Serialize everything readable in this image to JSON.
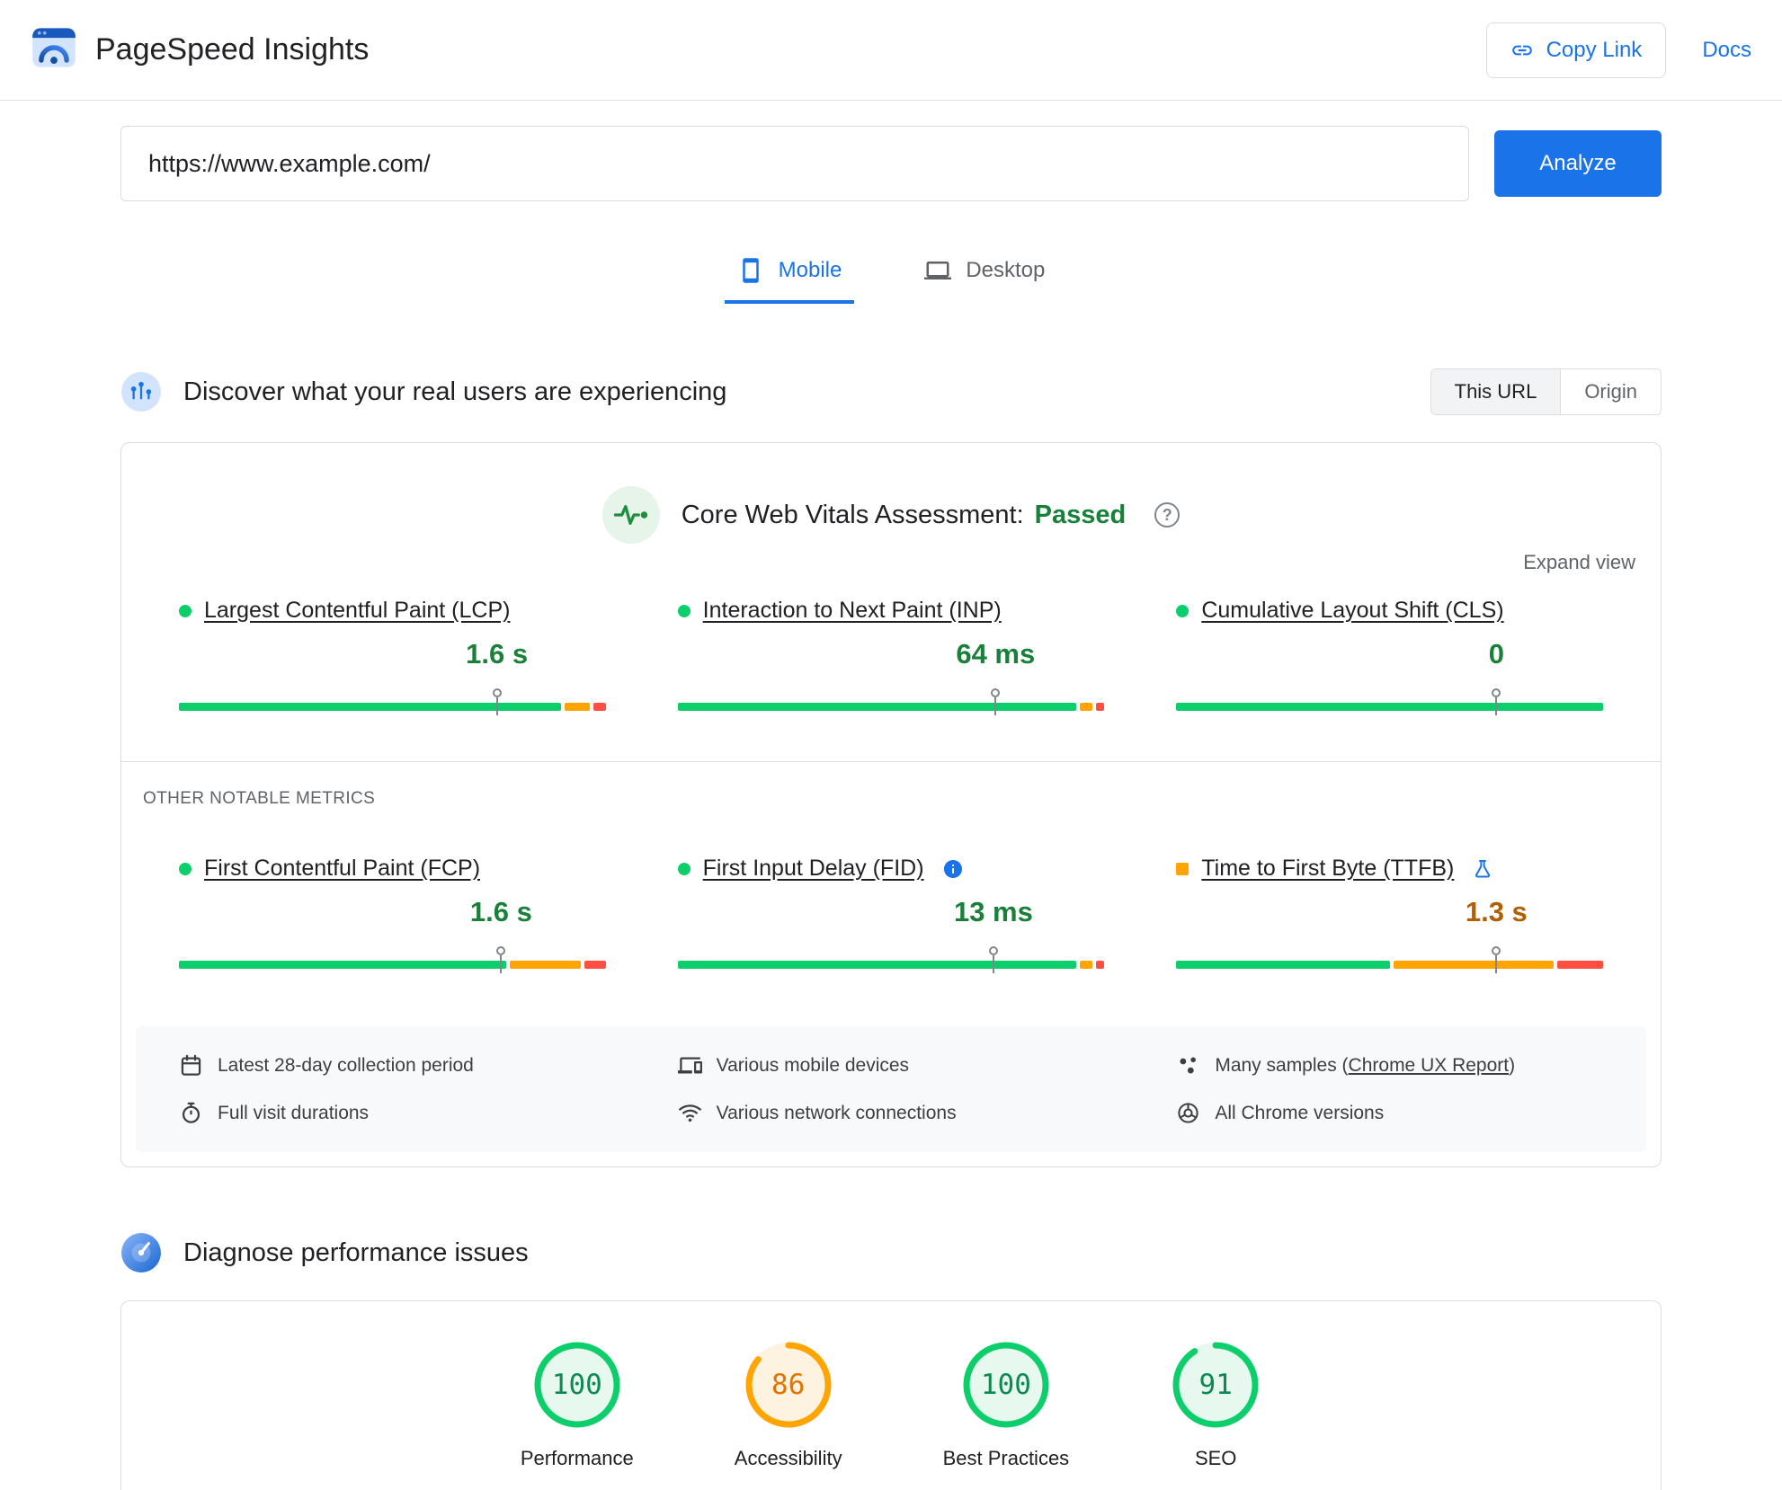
{
  "colors": {
    "brand_blue": "#1a73e8",
    "bar_green": "#0cce6b",
    "bar_orange": "#ffa400",
    "bar_red": "#ff4e42",
    "good_text": "#188038",
    "average_text": "#b06000",
    "passed_green": "#188038",
    "score_green": "#0cce6b",
    "score_green_text": "#0d8a4f",
    "score_green_bg": "#e7f8ee",
    "score_orange": "#ffa400",
    "score_orange_text": "#e37400",
    "score_orange_bg": "#fdf3e0"
  },
  "header": {
    "app_title": "PageSpeed Insights",
    "copy_link_label": "Copy Link",
    "docs_label": "Docs",
    "icons": {
      "logo": "pagespeed-gauge-icon",
      "copy_link": "link-icon"
    }
  },
  "url_form": {
    "value": "https://www.example.com/",
    "analyze_label": "Analyze"
  },
  "tabs": {
    "mobile": {
      "label": "Mobile",
      "icon": "smartphone-icon",
      "active": true
    },
    "desktop": {
      "label": "Desktop",
      "icon": "desktop-icon",
      "active": false
    }
  },
  "field": {
    "section_title": "Discover what your real users are experiencing",
    "section_icon": "crux-logo-icon",
    "toggle_this_url": "This URL",
    "toggle_origin": "Origin",
    "cwv_label": "Core Web Vitals Assessment:",
    "cwv_result": "Passed",
    "cwv_icon": "heartbeat-icon",
    "help_glyph": "?",
    "expand_view": "Expand view",
    "core_metrics": [
      {
        "label": "Largest Contentful Paint (LCP)",
        "value": "1.6 s",
        "status": "good",
        "marker": 74.5,
        "segments": [
          91,
          6,
          3
        ]
      },
      {
        "label": "Interaction to Next Paint (INP)",
        "value": "64 ms",
        "status": "good",
        "marker": 74.5,
        "segments": [
          95,
          3,
          2
        ]
      },
      {
        "label": "Cumulative Layout Shift (CLS)",
        "value": "0",
        "status": "good",
        "marker": 75,
        "segments": [
          100,
          0,
          0
        ]
      }
    ],
    "other_metrics_title": "OTHER NOTABLE METRICS",
    "other_metrics": [
      {
        "label": "First Contentful Paint (FCP)",
        "value": "1.6 s",
        "status": "good",
        "marker": 75.5,
        "segments": [
          78,
          17,
          5
        ]
      },
      {
        "label": "First Input Delay (FID)",
        "value": "13 ms",
        "status": "good",
        "marker": 74,
        "segments": [
          95,
          3,
          2
        ],
        "extra_icon": "info-icon"
      },
      {
        "label": "Time to First Byte (TTFB)",
        "value": "1.3 s",
        "status": "average",
        "marker": 75,
        "segments": [
          51,
          38,
          11
        ],
        "extra_icon": "experiment-flask-icon"
      }
    ],
    "details": [
      {
        "icon": "calendar-icon",
        "text": "Latest 28-day collection period"
      },
      {
        "icon": "devices-icon",
        "text": "Various mobile devices"
      },
      {
        "icon": "samples-scatter-icon",
        "text_prefix": "Many samples (",
        "link": "Chrome UX Report",
        "text_suffix": ")"
      },
      {
        "icon": "timer-icon",
        "text": "Full visit durations"
      },
      {
        "icon": "network-icon",
        "text": "Various network connections"
      },
      {
        "icon": "chrome-icon",
        "text": "All Chrome versions"
      }
    ]
  },
  "lab": {
    "section_title": "Diagnose performance issues",
    "section_icon": "speedometer-icon",
    "scores": [
      {
        "value": 100,
        "label": "Performance",
        "category": "good"
      },
      {
        "value": 86,
        "label": "Accessibility",
        "category": "average"
      },
      {
        "value": 100,
        "label": "Best Practices",
        "category": "good"
      },
      {
        "value": 91,
        "label": "SEO",
        "category": "good"
      }
    ]
  }
}
